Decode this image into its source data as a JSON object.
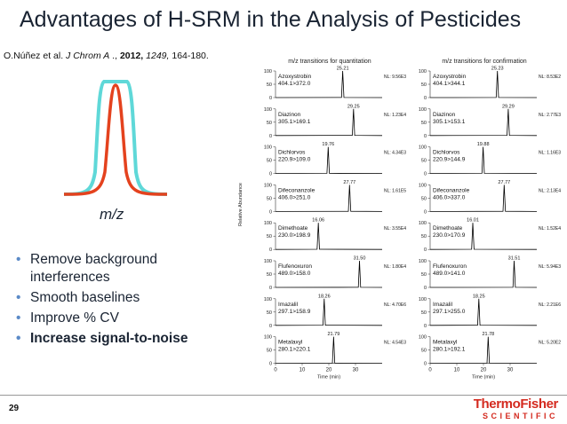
{
  "slide": {
    "title": "Advantages of H-SRM in the Analysis of Pesticides",
    "citation": {
      "authors": "O.Núñez et al.",
      "journal": "J Chrom A",
      "sep": " .,",
      "year": "2012,",
      "volume": "1249,",
      "pages": "164-180."
    },
    "page_number": "29"
  },
  "peak_figure": {
    "xlabel": "m/z",
    "colors": {
      "wide": "#5fd8d8",
      "narrow": "#e4421e"
    }
  },
  "bullets": [
    {
      "text": "Remove background interferences",
      "bold": false
    },
    {
      "text": "Smooth baselines",
      "bold": false
    },
    {
      "text": "Improve % CV",
      "bold": false
    },
    {
      "text": "Increase signal-to-noise",
      "bold": true
    }
  ],
  "chart_data": {
    "type": "line",
    "ylabel": "Relative Abundance",
    "xlabel": "Time (min)",
    "xlim": [
      0,
      40
    ],
    "ylim": [
      0,
      100
    ],
    "x_ticks": [
      "0",
      "10",
      "20",
      "30"
    ],
    "y_ticks": [
      "0",
      "50",
      "100"
    ],
    "panels": [
      {
        "title": "m/z transitions for quantitation",
        "traces": [
          {
            "name": "Azoxystrobin",
            "transition": "404.1>372.0",
            "rt": 25.21,
            "nl": "NL: 9.56E3"
          },
          {
            "name": "Diazinon",
            "transition": "305.1>169.1",
            "rt": 29.25,
            "nl": "NL: 1.23E4"
          },
          {
            "name": "Dichlorvos",
            "transition": "220.9>109.0",
            "rt": 19.76,
            "nl": "NL: 4.34E3"
          },
          {
            "name": "Difeconanzole",
            "transition": "406.0>251.0",
            "rt": 27.77,
            "nl": "NL: 1.61E5"
          },
          {
            "name": "Dimethoate",
            "transition": "230.0>198.9",
            "rt": 16.06,
            "nl": "NL: 3.55E4"
          },
          {
            "name": "Flufenoxuron",
            "transition": "489.0>158.0",
            "rt": 31.5,
            "nl": "NL: 1.80E4"
          },
          {
            "name": "Imazalil",
            "transition": "297.1>158.9",
            "rt": 18.26,
            "nl": "NL: 4.70E6"
          },
          {
            "name": "Metalaxyl",
            "transition": "280.1>220.1",
            "rt": 21.79,
            "nl": "NL: 4.54E3"
          }
        ]
      },
      {
        "title": "m/z transitions for confirmation",
        "traces": [
          {
            "name": "Azoxystrobin",
            "transition": "404.1>344.1",
            "rt": 25.23,
            "nl": "NL: 8.53E2"
          },
          {
            "name": "Diazinon",
            "transition": "305.1>153.1",
            "rt": 29.29,
            "nl": "NL: 2.77E3"
          },
          {
            "name": "Dichlorvos",
            "transition": "220.9>144.9",
            "rt": 19.88,
            "nl": "NL: 1.16E3"
          },
          {
            "name": "Difeconanzole",
            "transition": "406.0>337.0",
            "rt": 27.77,
            "nl": "NL: 2.13E4"
          },
          {
            "name": "Dimethoate",
            "transition": "230.0>170.9",
            "rt": 16.01,
            "nl": "NL: 1.52E4"
          },
          {
            "name": "Flufenoxuron",
            "transition": "489.0>141.0",
            "rt": 31.51,
            "nl": "NL: 5.94E3"
          },
          {
            "name": "Imazalil",
            "transition": "297.1>255.0",
            "rt": 18.25,
            "nl": "NL: 2.21E6"
          },
          {
            "name": "Metalaxyl",
            "transition": "280.1>192.1",
            "rt": 21.78,
            "nl": "NL: 5.20E2"
          }
        ]
      }
    ]
  },
  "logo": {
    "line1": "ThermoFisher",
    "line2": "SCIENTIFIC"
  }
}
